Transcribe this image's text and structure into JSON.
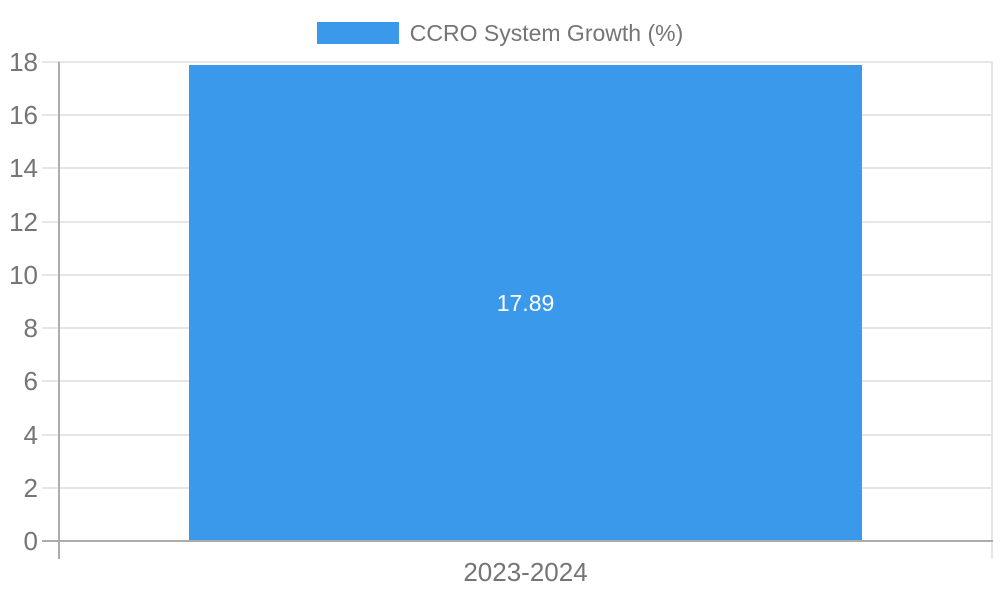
{
  "chart_data": {
    "type": "bar",
    "title": "CCRO System Growth (%)",
    "categories": [
      "2023-2024"
    ],
    "series": [
      {
        "name": "CCRO System Growth (%)",
        "values": [
          17.89
        ]
      }
    ],
    "value_labels": [
      "17.89"
    ],
    "xlabel": "",
    "ylabel": "",
    "ylim": [
      0,
      18
    ],
    "yticks": [
      0,
      2,
      4,
      6,
      8,
      10,
      12,
      14,
      16,
      18
    ],
    "grid": true,
    "legend_position": "top-center",
    "colors": {
      "bar": "#3B99EC",
      "grid_line": "#E6E6E6",
      "axis_line": "#ACACAC",
      "tick_text": "#757575",
      "bar_label": "#FFFFFF",
      "background": "#FFFFFF"
    }
  }
}
